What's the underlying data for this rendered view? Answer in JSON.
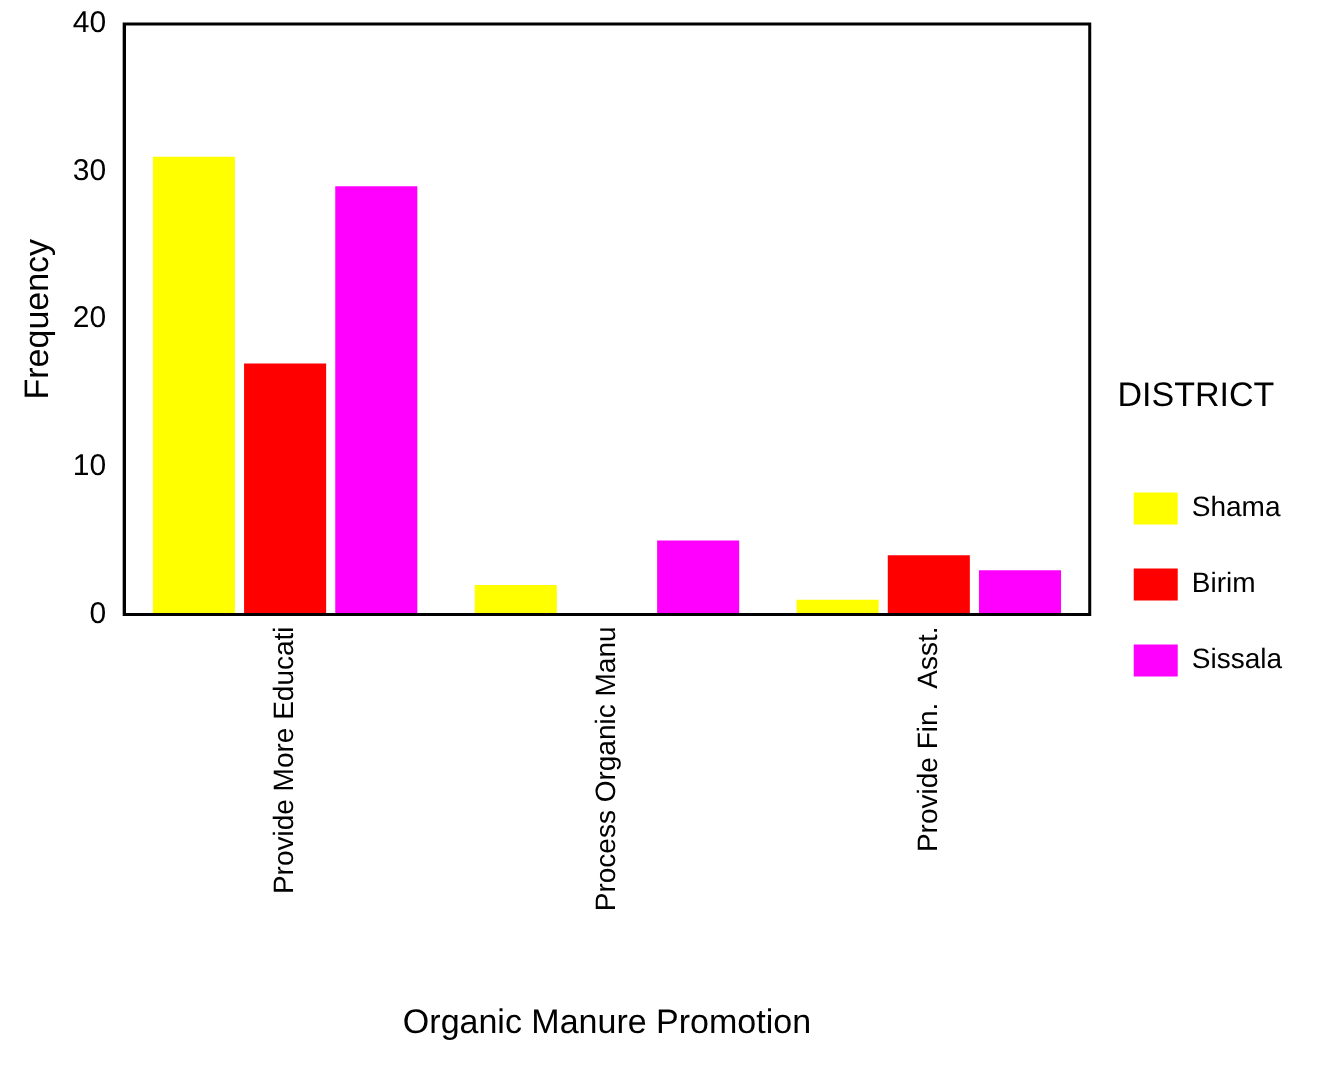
{
  "chart_data": {
    "type": "bar",
    "xlabel": "Organic Manure Promotion",
    "ylabel": "Frequency",
    "legend_title": "DISTRICT",
    "categories": [
      "Provide More Educati",
      "Process Organic Manu",
      "Provide Fin.  Asst."
    ],
    "series": [
      {
        "name": "Shama",
        "color": "#ffff00",
        "values": [
          31,
          2,
          1
        ]
      },
      {
        "name": "Birim",
        "color": "#ff0000",
        "values": [
          17,
          0,
          4
        ]
      },
      {
        "name": "Sissala",
        "color": "#ff00ff",
        "values": [
          29,
          5,
          3
        ]
      }
    ],
    "ylim": [
      0,
      40
    ],
    "yticks": [
      0,
      10,
      20,
      30,
      40
    ],
    "grid": false,
    "legend": "right"
  }
}
